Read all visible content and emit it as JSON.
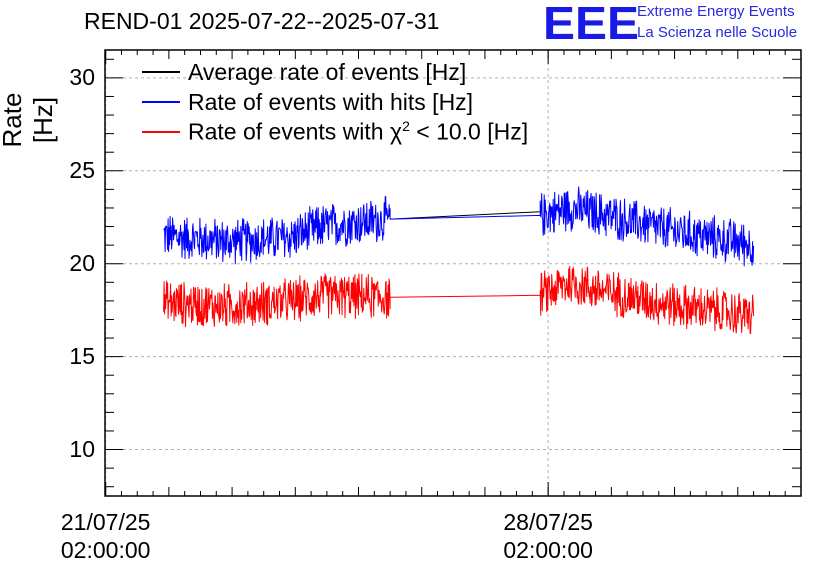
{
  "chart_data": {
    "type": "line",
    "title": "REND-01 2025-07-22--2025-07-31",
    "ylabel": "Rate [Hz]",
    "xlabel": "",
    "ylim": [
      7.5,
      31.5
    ],
    "yticks": [
      10,
      15,
      20,
      25,
      30
    ],
    "xticks": [
      {
        "date": "2025-07-21T02:00:00",
        "line1": "21/07/25",
        "line2": "02:00:00"
      },
      {
        "date": "2025-07-28T02:00:00",
        "line1": "28/07/25",
        "line2": "02:00:00"
      }
    ],
    "xlim": [
      "2025-07-21T01:45:00",
      "2025-08-01T02:00:00"
    ],
    "grid": true,
    "legend_position": "top-left",
    "series": [
      {
        "name": "Average rate of events [Hz]",
        "color": "#000000",
        "x": [
          "2025-07-25T14:00:00",
          "2025-07-27T23:00:00"
        ],
        "values": [
          22.4,
          22.8
        ]
      },
      {
        "name": "Rate of events with hits [Hz]",
        "color": "#0000ff",
        "x": [
          "2025-07-22T00:00:00",
          "2025-07-23T00:00:00",
          "2025-07-24T00:00:00",
          "2025-07-24T12:00:00",
          "2025-07-25T14:00:00",
          "2025-07-27T23:00:00",
          "2025-07-28T10:00:00",
          "2025-07-29T00:00:00",
          "2025-07-30T00:00:00",
          "2025-07-31T08:00:00"
        ],
        "values": [
          21.5,
          21.2,
          21.4,
          22.0,
          22.4,
          22.6,
          23.0,
          22.6,
          21.8,
          21.0
        ]
      },
      {
        "name": "Rate of events with χ2 < 10.0 [Hz]",
        "color": "#ff0000",
        "x": [
          "2025-07-22T00:00:00",
          "2025-07-23T00:00:00",
          "2025-07-24T00:00:00",
          "2025-07-24T12:00:00",
          "2025-07-25T14:00:00",
          "2025-07-27T23:00:00",
          "2025-07-28T10:00:00",
          "2025-07-29T00:00:00",
          "2025-07-30T00:00:00",
          "2025-07-31T08:00:00"
        ],
        "values": [
          17.9,
          17.7,
          18.0,
          18.3,
          18.2,
          18.3,
          19.0,
          18.5,
          17.8,
          17.2
        ]
      }
    ]
  },
  "logo": {
    "text": "EEE",
    "line1": "Extreme Energy Events",
    "line2": "La Scienza nelle Scuole",
    "color": "#2a2ae0"
  },
  "legend": {
    "avg": "Average rate of events [Hz]",
    "hits": "Rate of events with hits [Hz]",
    "chi_prefix": "Rate of events with χ",
    "chi_sup": "2",
    "chi_suffix": " < 10.0 [Hz]"
  }
}
